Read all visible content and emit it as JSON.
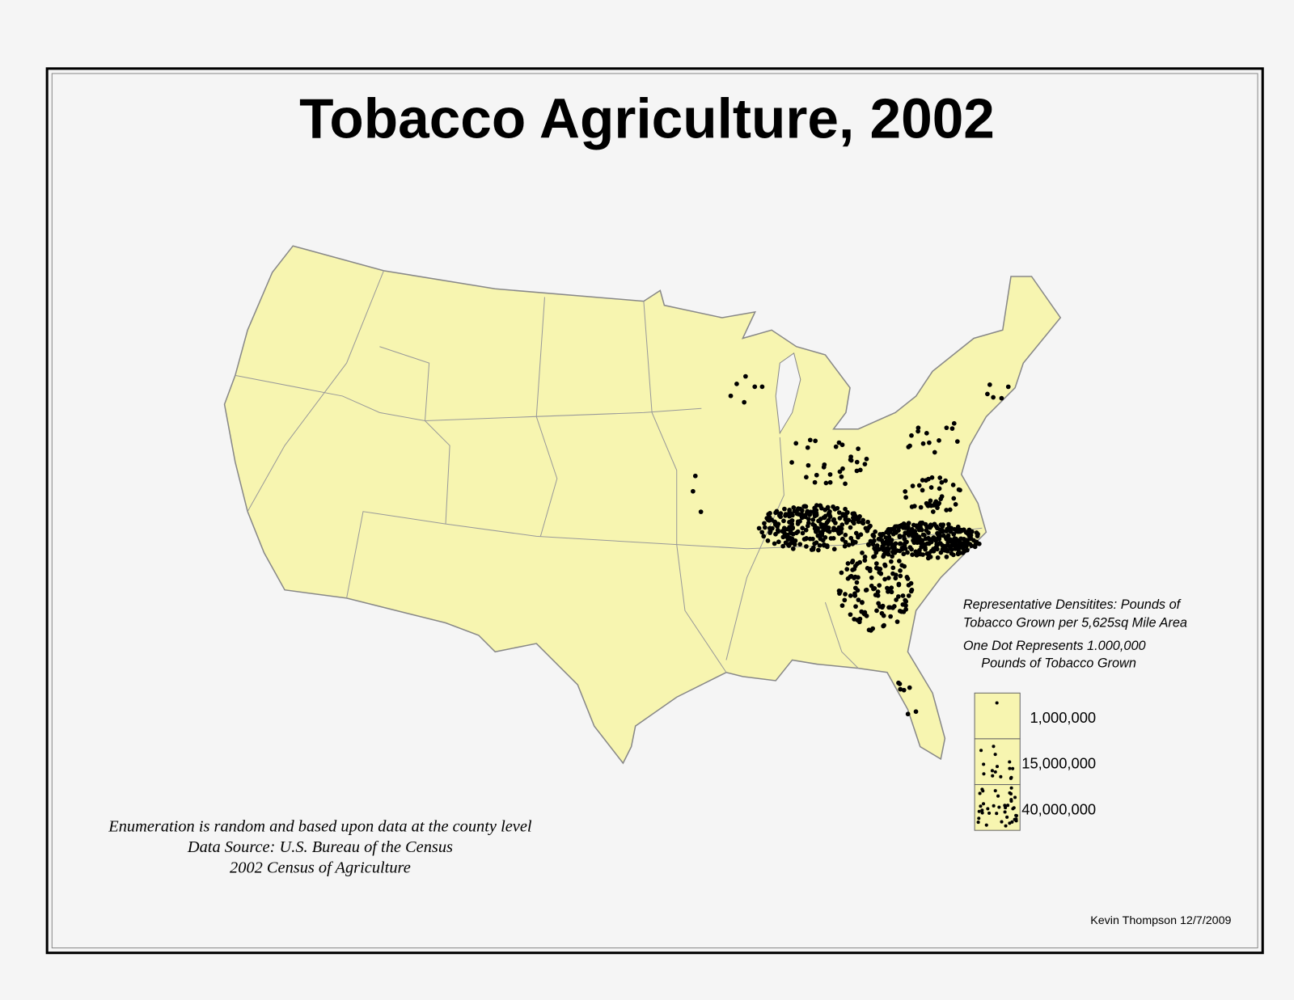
{
  "header": {
    "title": "Tobacco Agriculture, 2002"
  },
  "legend": {
    "notes": [
      "Representative Densitites:  Pounds of",
      "Tobacco Grown per 5,625sq Mile Area",
      "One Dot Represents 1.000,000",
      "Pounds of Tobacco Grown"
    ],
    "items": [
      {
        "label": "1,000,000"
      },
      {
        "label": "15,000,000"
      },
      {
        "label": "40,000,000"
      }
    ]
  },
  "source": {
    "lines": [
      "Enumeration is random and based upon data at the county level",
      "Data Source:  U.S. Bureau of the Census",
      "2002 Census of Agriculture"
    ]
  },
  "credit": "Kevin Thompson 12/7/2009"
}
